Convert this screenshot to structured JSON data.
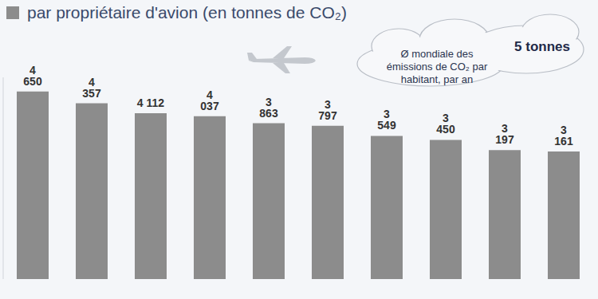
{
  "chart_data": {
    "type": "bar",
    "title": "par propriétaire d'avion (en tonnes de CO₂)",
    "categories": [
      null,
      null,
      null,
      null,
      null,
      null,
      null,
      null,
      null,
      null
    ],
    "values": [
      4650,
      4357,
      4112,
      4037,
      3863,
      3797,
      3549,
      3450,
      3197,
      3161
    ],
    "value_labels": [
      "4 650",
      "4 357",
      "4 112",
      "4 037",
      "3 863",
      "3 797",
      "3 549",
      "3 450",
      "3 197",
      "3 161"
    ],
    "color": "#8c8c8c",
    "ylim": [
      0,
      5000
    ],
    "yticks": [],
    "grid": false,
    "data_labels": true,
    "tick_labels": false,
    "annotation": [
      "Ø mondiale des",
      "émissions de CO₂ par",
      "habitant, par an"
    ],
    "annotation_value": "5 tonnes"
  }
}
